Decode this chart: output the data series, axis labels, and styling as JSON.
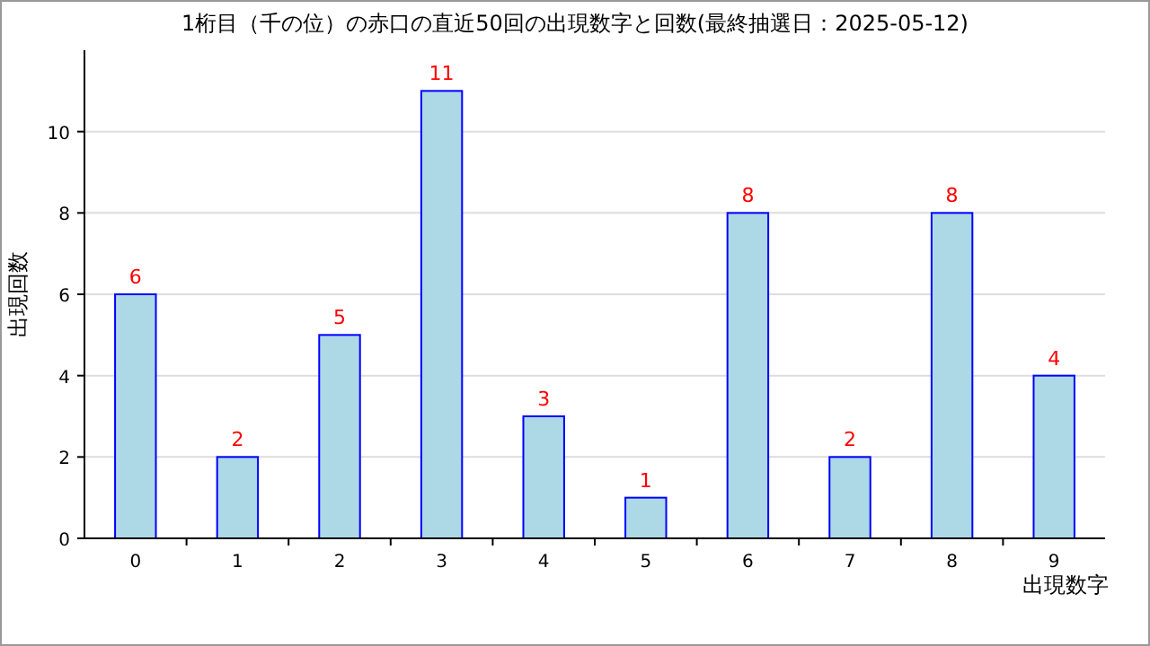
{
  "chart_data": {
    "type": "bar",
    "title": "1桁目（千の位）の赤口の直近50回の出現数字と回数(最終抽選日：2025-05-12)",
    "categories": [
      "0",
      "1",
      "2",
      "3",
      "4",
      "5",
      "6",
      "7",
      "8",
      "9"
    ],
    "values": [
      6,
      2,
      5,
      11,
      3,
      1,
      8,
      2,
      8,
      4
    ],
    "color": "#add8e6",
    "xlabel": "出現数字",
    "ylabel": "出現回数",
    "ylim": [
      0,
      12
    ],
    "yticks": [
      0,
      2,
      4,
      6,
      8,
      10
    ],
    "grid": "y",
    "data_labels": true
  }
}
